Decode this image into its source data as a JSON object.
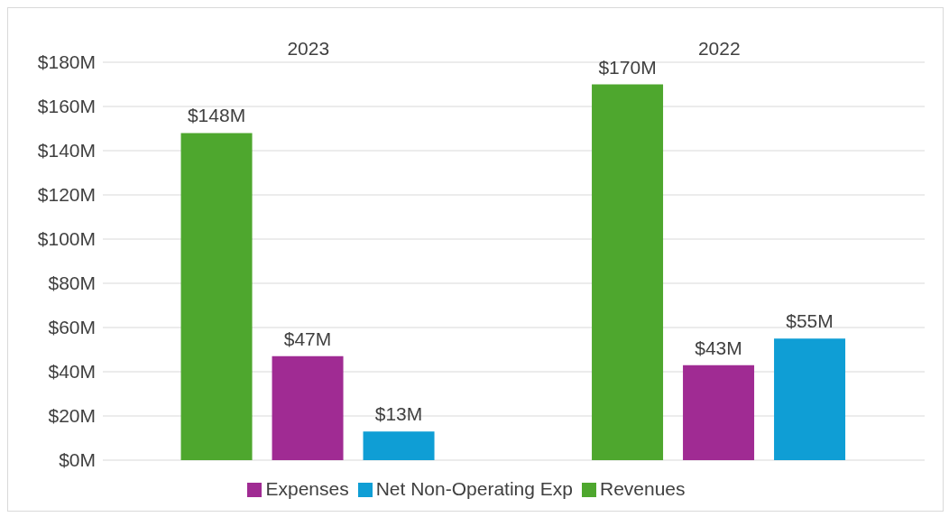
{
  "chart_data": {
    "type": "bar",
    "categories": [
      "2023",
      "2022"
    ],
    "series": [
      {
        "name": "Revenues",
        "color": "#4ea72e",
        "values": [
          148,
          170
        ],
        "value_labels": [
          "$148M",
          "$170M"
        ]
      },
      {
        "name": "Expenses",
        "color": "#a02b93",
        "values": [
          47,
          43
        ],
        "value_labels": [
          "$47M",
          "$43M"
        ]
      },
      {
        "name": "Net Non-Operating Exp",
        "color": "#0f9ed5",
        "values": [
          13,
          55
        ],
        "value_labels": [
          "$13M",
          "$55M"
        ]
      }
    ],
    "ylim": [
      0,
      180
    ],
    "yticks": [
      {
        "value": 0,
        "label": "$0M"
      },
      {
        "value": 20,
        "label": "$20M"
      },
      {
        "value": 40,
        "label": "$40M"
      },
      {
        "value": 60,
        "label": "$60M"
      },
      {
        "value": 80,
        "label": "$80M"
      },
      {
        "value": 100,
        "label": "$100M"
      },
      {
        "value": 120,
        "label": "$120M"
      },
      {
        "value": 140,
        "label": "$140M"
      },
      {
        "value": 160,
        "label": "$160M"
      },
      {
        "value": 180,
        "label": "$180M"
      }
    ],
    "grid": "y",
    "legend": "bottom"
  }
}
